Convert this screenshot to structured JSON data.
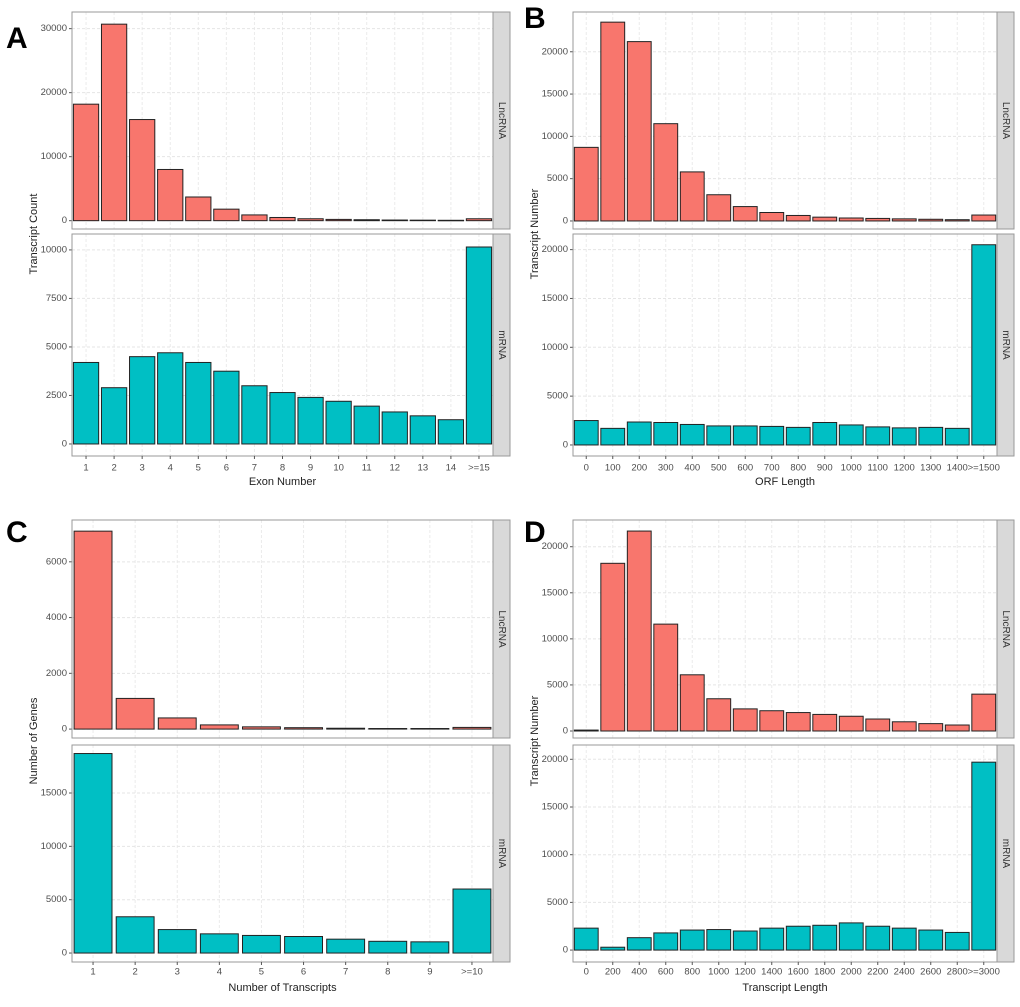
{
  "chart_data": [
    {
      "type": "bar",
      "label": "A",
      "x_label": "Exon Number",
      "y_label": "Transcript Count",
      "categories": [
        "1",
        "2",
        "3",
        "4",
        "5",
        "6",
        "7",
        "8",
        "9",
        "10",
        "11",
        "12",
        "13",
        "14",
        ">=15"
      ],
      "grid": true,
      "facets": [
        {
          "name": "LncRNA",
          "color": "#F8766D",
          "ylim": [
            -1300,
            32600
          ],
          "yticks": [
            0,
            10000,
            20000,
            30000
          ],
          "values": [
            18200,
            30700,
            15800,
            8000,
            3700,
            1800,
            900,
            500,
            300,
            200,
            150,
            100,
            80,
            60,
            300
          ]
        },
        {
          "name": "mRNA",
          "color": "#00BFC4",
          "ylim": [
            -620,
            10820
          ],
          "yticks": [
            0,
            2500,
            5000,
            7500,
            10000
          ],
          "values": [
            4200,
            2900,
            4500,
            4700,
            4200,
            3750,
            3000,
            2650,
            2400,
            2200,
            1950,
            1650,
            1450,
            1250,
            10150
          ]
        }
      ]
    },
    {
      "type": "bar",
      "label": "B",
      "x_label": "ORF Length",
      "y_label": "Transcript Number",
      "categories": [
        "0",
        "100",
        "200",
        "300",
        "400",
        "500",
        "600",
        "700",
        "800",
        "900",
        "1000",
        "1100",
        "1200",
        "1300",
        "1400",
        ">=1500"
      ],
      "grid": true,
      "facets": [
        {
          "name": "LncRNA",
          "color": "#F8766D",
          "ylim": [
            -950,
            24700
          ],
          "yticks": [
            0,
            5000,
            10000,
            15000,
            20000
          ],
          "values": [
            8700,
            23500,
            21200,
            11500,
            5800,
            3100,
            1700,
            1000,
            650,
            450,
            350,
            300,
            250,
            200,
            150,
            700
          ]
        },
        {
          "name": "mRNA",
          "color": "#00BFC4",
          "ylim": [
            -1130,
            21600
          ],
          "yticks": [
            0,
            5000,
            10000,
            15000,
            20000
          ],
          "values": [
            2500,
            1700,
            2350,
            2300,
            2100,
            1950,
            1950,
            1900,
            1800,
            2300,
            2050,
            1850,
            1750,
            1800,
            1700,
            20500
          ]
        }
      ]
    },
    {
      "type": "bar",
      "label": "C",
      "x_label": "Number of Transcripts",
      "y_label": "Number of Genes",
      "categories": [
        "1",
        "2",
        "3",
        "4",
        "5",
        "6",
        "7",
        "8",
        "9",
        ">=10"
      ],
      "grid": true,
      "facets": [
        {
          "name": "LncRNA",
          "color": "#F8766D",
          "ylim": [
            -320,
            7500
          ],
          "yticks": [
            0,
            2000,
            4000,
            6000
          ],
          "values": [
            7100,
            1100,
            400,
            150,
            80,
            50,
            30,
            20,
            20,
            60
          ]
        },
        {
          "name": "mRNA",
          "color": "#00BFC4",
          "ylim": [
            -840,
            19500
          ],
          "yticks": [
            0,
            5000,
            10000,
            15000
          ],
          "values": [
            18700,
            3400,
            2200,
            1800,
            1650,
            1550,
            1300,
            1100,
            1050,
            6000
          ]
        }
      ]
    },
    {
      "type": "bar",
      "label": "D",
      "x_label": "Transcript Length",
      "y_label": "Transcript Number",
      "categories": [
        "0",
        "200",
        "400",
        "600",
        "800",
        "1000",
        "1200",
        "1400",
        "1600",
        "1800",
        "2000",
        "2200",
        "2400",
        "2600",
        "2800",
        ">=3000"
      ],
      "grid": true,
      "facets": [
        {
          "name": "LncRNA",
          "color": "#F8766D",
          "ylim": [
            -760,
            22900
          ],
          "yticks": [
            0,
            5000,
            10000,
            15000,
            20000
          ],
          "values": [
            100,
            18200,
            21700,
            11600,
            6100,
            3500,
            2400,
            2200,
            2000,
            1800,
            1600,
            1300,
            1000,
            800,
            650,
            4000
          ]
        },
        {
          "name": "mRNA",
          "color": "#00BFC4",
          "ylim": [
            -1250,
            21500
          ],
          "yticks": [
            0,
            5000,
            10000,
            15000,
            20000
          ],
          "values": [
            2300,
            300,
            1300,
            1800,
            2100,
            2150,
            2000,
            2300,
            2500,
            2600,
            2850,
            2500,
            2300,
            2100,
            1850,
            19700
          ]
        }
      ]
    }
  ]
}
